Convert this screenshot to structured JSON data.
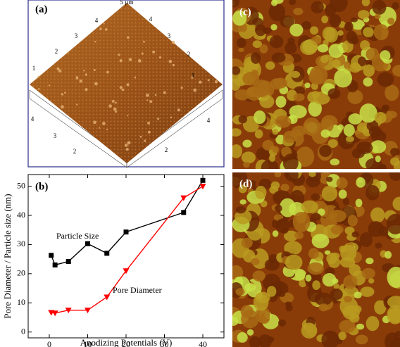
{
  "panels": {
    "a": "(a)",
    "b": "(b)",
    "c": "(c)",
    "d": "(d)"
  },
  "panel_a_labels": [
    "1",
    "2",
    "3",
    "4",
    "5 µm",
    "1",
    "2",
    "3",
    "4",
    "4",
    "3",
    "2",
    "2",
    "4"
  ],
  "chart_data": {
    "type": "line",
    "x_label": "Anodizing Potentials (V)",
    "y_label": "Pore Diameter / Particle size (nm)",
    "x": [
      0.5,
      1.5,
      5,
      10,
      15,
      20,
      35,
      40
    ],
    "series": [
      {
        "name": "Particle Size",
        "color": "#000000",
        "marker": "square",
        "values": [
          26.3,
          23,
          24.2,
          30.3,
          27,
          34.3,
          41,
          52
        ]
      },
      {
        "name": "Pore Diameter",
        "color": "#ff0000",
        "marker": "triangle-down",
        "values": [
          6.7,
          6.5,
          7.5,
          7.5,
          12,
          21,
          46,
          50
        ]
      }
    ],
    "xlim": [
      -5.5,
      45.5
    ],
    "xticks": [
      0,
      10,
      20,
      30,
      40
    ],
    "ylim": [
      -2,
      54
    ],
    "yticks": [
      0,
      10,
      20,
      30,
      40,
      50
    ]
  }
}
